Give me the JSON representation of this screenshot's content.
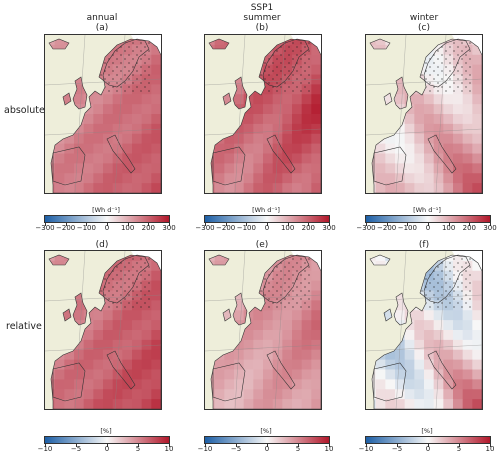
{
  "figure": {
    "scenario": "SSP1",
    "columns": [
      "annual",
      "summer",
      "winter"
    ],
    "rows": [
      "absolute",
      "relative"
    ],
    "panel_labels": [
      "(a)",
      "(b)",
      "(c)",
      "(d)",
      "(e)",
      "(f)"
    ]
  },
  "chart_data": [
    {
      "type": "heatmap",
      "row": "absolute",
      "colorbar_unit": "[Wh d⁻¹]",
      "colorbar_ticks": [
        "−300",
        "−200",
        "−100",
        "0",
        "100",
        "200",
        "300"
      ],
      "vrange": [
        -300,
        300
      ],
      "panels": [
        {
          "label": "(a)",
          "season": "annual",
          "range": [
            60,
            240
          ]
        },
        {
          "label": "(b)",
          "season": "summer",
          "range": [
            80,
            300
          ]
        },
        {
          "label": "(c)",
          "season": "winter",
          "range": [
            -20,
            260
          ]
        }
      ]
    },
    {
      "type": "heatmap",
      "row": "relative",
      "colorbar_unit": "[%]",
      "colorbar_ticks": [
        "−10",
        "−5",
        "0",
        "5",
        "10"
      ],
      "vrange": [
        -10,
        10
      ],
      "panels": [
        {
          "label": "(d)",
          "season": "annual",
          "range": [
            2,
            9
          ]
        },
        {
          "label": "(e)",
          "season": "summer",
          "range": [
            1,
            7
          ]
        },
        {
          "label": "(f)",
          "season": "winter",
          "range": [
            -4,
            9
          ]
        }
      ]
    }
  ],
  "colors": {
    "land_background": "#eeeeda",
    "sea_masked": "#ffffff",
    "cmap_low": "#1d5fa6",
    "cmap_mid": "#f7f7f7",
    "cmap_high": "#b2182b"
  }
}
